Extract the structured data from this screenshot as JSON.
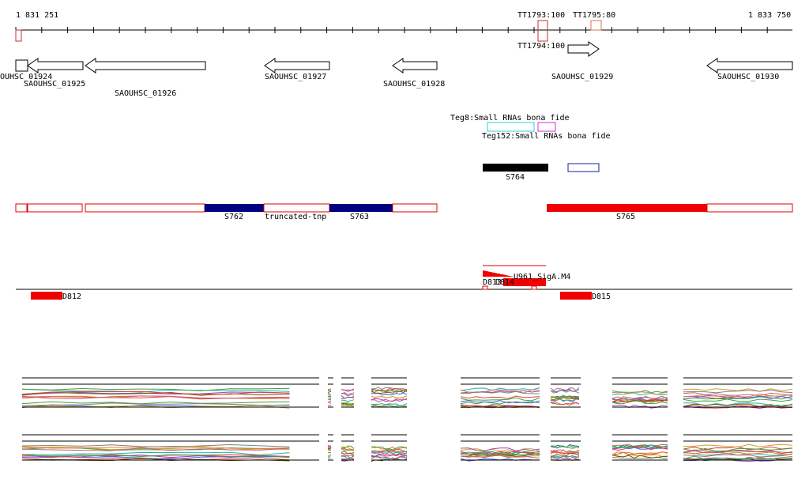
{
  "ruler": {
    "start": "1 831 251",
    "end": "1 833 750"
  },
  "terminators": [
    "TT1793:100",
    "TT1795:80",
    "TT1794:100"
  ],
  "genes": [
    "OUHSC_01924",
    "SAOUHSC_01925",
    "SAOUHSC_01926",
    "SAOUHSC_01927",
    "SAOUHSC_01928",
    "SAOUHSC_01929",
    "SAOUHSC_01930"
  ],
  "small_rnas": [
    "Teg8:Small RNAs bona fide",
    "Teg152:Small RNAs bona fide",
    "S764"
  ],
  "segments": [
    "S762",
    "truncated-tnp",
    "S763",
    "S765"
  ],
  "features": [
    "U961_SigA.M4",
    "D813",
    "D814",
    "D812",
    "D815"
  ]
}
